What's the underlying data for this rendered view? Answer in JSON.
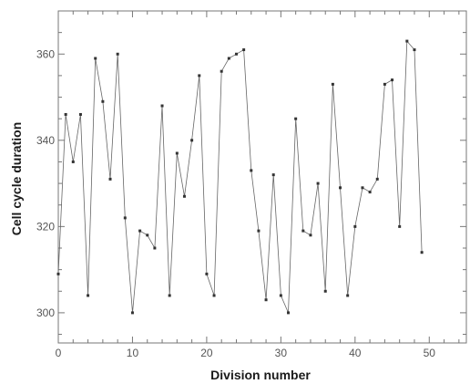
{
  "chart_data": {
    "type": "line",
    "xlabel": "Division number",
    "ylabel": "Cell cycle duration",
    "xlim": [
      0,
      55
    ],
    "ylim": [
      293,
      370
    ],
    "x_ticks": [
      0,
      10,
      20,
      30,
      40,
      50
    ],
    "y_ticks": [
      300,
      320,
      340,
      360
    ],
    "grid": false,
    "series": [
      {
        "x": [
          0,
          1,
          2,
          3,
          4,
          5,
          6,
          7,
          8,
          9,
          10,
          11,
          12,
          13,
          14,
          15,
          16,
          17,
          18,
          19,
          20,
          21,
          22,
          23,
          24,
          25,
          26,
          27,
          28,
          29,
          30,
          31,
          32,
          33,
          34,
          35,
          36,
          37,
          38,
          39,
          40,
          41,
          42,
          43,
          44,
          45,
          46,
          47,
          48,
          49
        ],
        "values": [
          309,
          346,
          335,
          346,
          304,
          359,
          349,
          331,
          360,
          322,
          300,
          319,
          318,
          315,
          348,
          304,
          337,
          327,
          340,
          355,
          309,
          304,
          356,
          359,
          360,
          361,
          333,
          319,
          303,
          332,
          304,
          300,
          345,
          319,
          318,
          330,
          305,
          353,
          329,
          304,
          320,
          329,
          328,
          331,
          353,
          354,
          320,
          363,
          361,
          314
        ]
      }
    ]
  }
}
